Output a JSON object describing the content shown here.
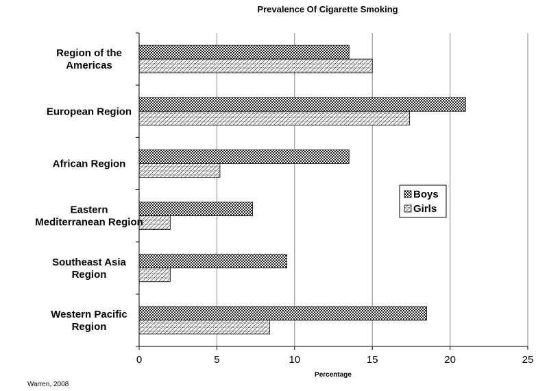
{
  "chart_data": {
    "type": "bar",
    "orientation": "horizontal",
    "title": "Prevalence Of Cigarette Smoking",
    "xlabel": "Percentage",
    "ylabel": "",
    "xlim": [
      0,
      25
    ],
    "x_ticks": [
      0,
      5,
      10,
      15,
      20,
      25
    ],
    "grid": true,
    "legend": "right",
    "categories": [
      [
        "Region of the",
        "Americas"
      ],
      [
        "European Region"
      ],
      [
        "African Region"
      ],
      [
        "Eastern",
        "Mediterranean Region"
      ],
      [
        "Southeast Asia",
        "Region"
      ],
      [
        "Western Pacific",
        "Region"
      ]
    ],
    "series": [
      {
        "name": "Boys",
        "values": [
          13.5,
          21.0,
          13.5,
          7.3,
          9.5,
          18.5
        ],
        "pattern": "checker"
      },
      {
        "name": "Girls",
        "values": [
          15.0,
          17.4,
          5.2,
          2.0,
          2.0,
          8.4
        ],
        "pattern": "wave"
      }
    ]
  },
  "source": "Warren, 2008"
}
